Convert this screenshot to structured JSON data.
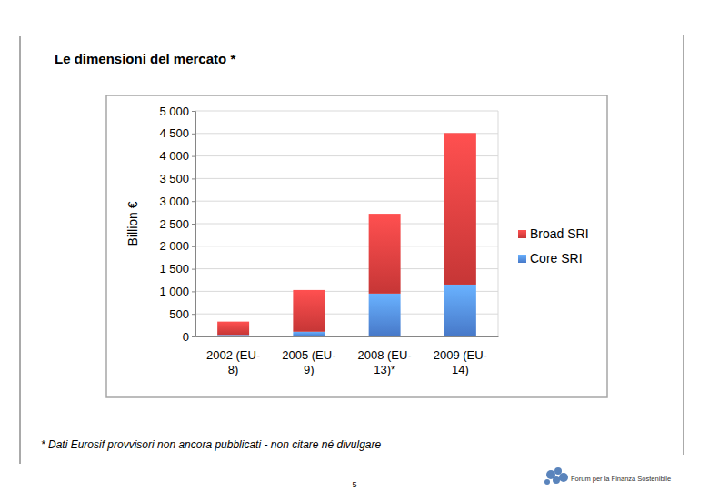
{
  "chart_data": {
    "type": "bar",
    "title": "Le dimensioni del mercato *",
    "y_label": "Billion €",
    "categories": [
      "2002 (EU-8)",
      "2005 (EU-9)",
      "2008 (EU-13)*",
      "2009 (EU-14)"
    ],
    "series": [
      {
        "name": "Core SRI",
        "color": "#4f86df",
        "values": [
          35,
          105,
          950,
          1150
        ]
      },
      {
        "name": "Broad SRI",
        "color": "#dc3c3c",
        "values": [
          295,
          925,
          1770,
          3360
        ]
      }
    ],
    "stacked": true,
    "grid": true,
    "legend": "right",
    "ylim": [
      0,
      5000
    ],
    "yticks": [
      0,
      500,
      {
        "value": 1000,
        "label": "1 000"
      },
      {
        "value": 1500,
        "label": "1 500"
      },
      {
        "value": 2000,
        "label": "2 000"
      },
      {
        "value": 2500,
        "label": "2 500"
      },
      {
        "value": 3000,
        "label": "3 000"
      },
      {
        "value": 3500,
        "label": "3 500"
      },
      {
        "value": 4000,
        "label": "4 000"
      },
      {
        "value": 4500,
        "label": "4 500"
      },
      {
        "value": 5000,
        "label": "5 000"
      }
    ]
  },
  "page": {
    "footnote": "* Dati Eurosif provvisori non ancora pubblicati - non citare né divulgare",
    "page_number": "5",
    "logo": "Forum per la Finanza Sostenibile"
  }
}
